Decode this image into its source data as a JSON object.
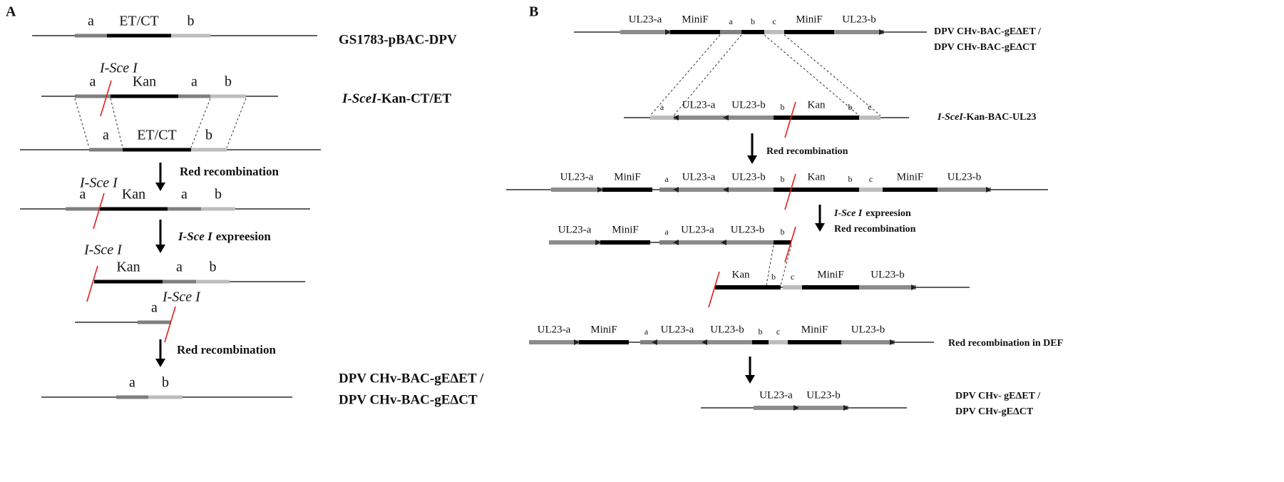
{
  "panel_a": {
    "label": "A",
    "rows": [
      {
        "labels": [
          "a",
          "ET/CT",
          "b"
        ],
        "name": "GS1783-pBAC-DPV"
      },
      {
        "site": "I-Sce I",
        "labels": [
          "a",
          "Kan",
          "a",
          "b"
        ],
        "name": {
          "italic": "I-SceI",
          "text": "-Kan-CT/ET"
        }
      },
      {
        "labels": [
          "a",
          "ET/CT",
          "b"
        ]
      },
      {
        "site": "I-Sce I",
        "labels": [
          "a",
          "Kan",
          "a",
          "b"
        ]
      },
      {
        "site": "I-Sce I",
        "labels": [
          "Kan",
          "a",
          "b"
        ]
      },
      {
        "site": "I-Sce I",
        "labels": [
          "a"
        ]
      },
      {
        "labels": [
          "a",
          "b"
        ],
        "name": [
          "DPV CHv-BAC-gEΔET /",
          "DPV CHv-BAC-gEΔCT"
        ]
      }
    ],
    "steps": [
      [
        "Red recombination"
      ],
      [
        {
          "italic": "I-Sce I",
          "text": "expreesion"
        }
      ],
      [
        "Red recombination"
      ]
    ]
  },
  "panel_b": {
    "label": "B",
    "rows": [
      {
        "labels": [
          "UL23-a",
          "MiniF",
          "a",
          "b",
          "c",
          "MiniF",
          "UL23-b"
        ],
        "name": [
          "DPV CHv-BAC-gEΔET /",
          "DPV CHv-BAC-gEΔCT"
        ]
      },
      {
        "labels": [
          "a",
          "UL23-a",
          "UL23-b",
          "b",
          "Kan",
          "b",
          "c"
        ],
        "name": {
          "italic": "I-SceI",
          "text": "-Kan-BAC-UL23"
        }
      },
      {
        "labels": [
          "UL23-a",
          "MiniF",
          "a",
          "UL23-a",
          "UL23-b",
          "b",
          "Kan",
          "b",
          "c",
          "MiniF",
          "UL23-b"
        ]
      },
      {
        "labels": [
          "UL23-a",
          "MiniF",
          "a",
          "UL23-a",
          "UL23-b",
          "b"
        ]
      },
      {
        "labels": [
          "Kan",
          "b",
          "c",
          "MiniF",
          "UL23-b"
        ]
      },
      {
        "labels": [
          "UL23-a",
          "MiniF",
          "a",
          "UL23-a",
          "UL23-b",
          "b",
          "c",
          "MiniF",
          "UL23-b"
        ],
        "name": "Red recombination in DEF"
      },
      {
        "labels": [
          "UL23-a",
          "UL23-b"
        ],
        "name": [
          "DPV CHv- gEΔET /",
          "DPV CHv-gEΔCT"
        ]
      }
    ],
    "steps": [
      [
        "Red recombination"
      ],
      [
        {
          "italic": "I-Sce I",
          "text": "expreesion"
        },
        "Red recombination"
      ],
      []
    ]
  }
}
